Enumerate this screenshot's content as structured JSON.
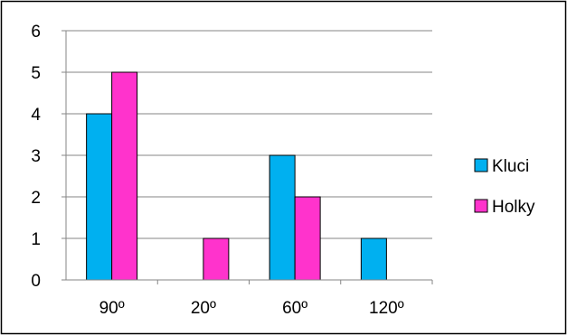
{
  "chart_data": {
    "type": "bar",
    "categories": [
      "90º",
      "20º",
      "60º",
      "120º"
    ],
    "series": [
      {
        "name": "Kluci",
        "values": [
          4,
          0,
          3,
          1
        ],
        "color": "#00B0F0"
      },
      {
        "name": "Holky",
        "values": [
          5,
          1,
          2,
          0
        ],
        "color": "#FF33CC"
      }
    ],
    "ylim": [
      0,
      6
    ],
    "yticks": [
      0,
      1,
      2,
      3,
      4,
      5,
      6
    ],
    "grid": true,
    "legend_position": "right"
  }
}
